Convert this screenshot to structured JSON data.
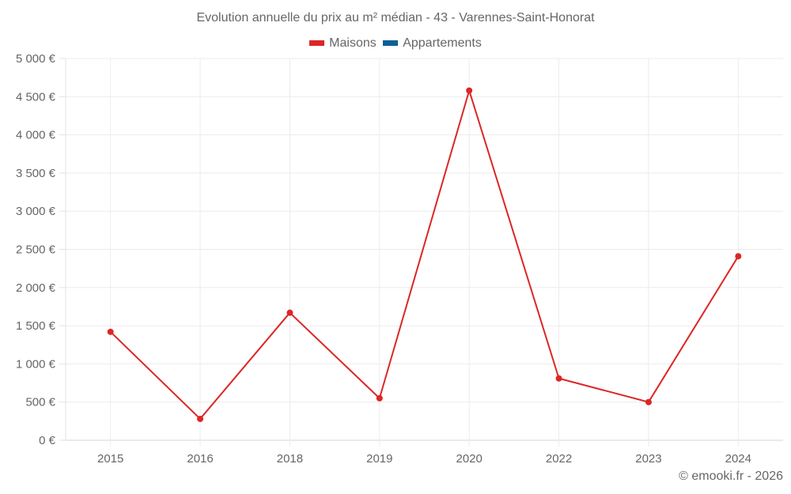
{
  "chart_data": {
    "type": "line",
    "title": "Evolution annuelle du prix au m² médian - 43 - Varennes-Saint-Honorat",
    "categories": [
      "2015",
      "2016",
      "2018",
      "2019",
      "2020",
      "2022",
      "2023",
      "2024"
    ],
    "series": [
      {
        "name": "Maisons",
        "color": "#dc2626",
        "values": [
          1420,
          280,
          1670,
          550,
          4580,
          810,
          500,
          2410
        ]
      },
      {
        "name": "Appartements",
        "color": "#0b5f99",
        "values": []
      }
    ],
    "xlabel": "",
    "ylabel": "",
    "ylim": [
      0,
      5000
    ],
    "yticks": [
      0,
      500,
      1000,
      1500,
      2000,
      2500,
      3000,
      3500,
      4000,
      4500,
      5000
    ],
    "ytick_labels": [
      "0 €",
      "500 €",
      "1 000 €",
      "1 500 €",
      "2 000 €",
      "2 500 €",
      "3 000 €",
      "3 500 €",
      "4 000 €",
      "4 500 €",
      "5 000 €"
    ],
    "grid": true,
    "legend_position": "top"
  },
  "header": {
    "title": "Evolution annuelle du prix au m² médian - 43 - Varennes-Saint-Honorat"
  },
  "legend": {
    "items": [
      {
        "label": "Maisons",
        "color": "#dc2626"
      },
      {
        "label": "Appartements",
        "color": "#0b5f99"
      }
    ]
  },
  "footer": {
    "credit": "© emooki.fr - 2026"
  }
}
